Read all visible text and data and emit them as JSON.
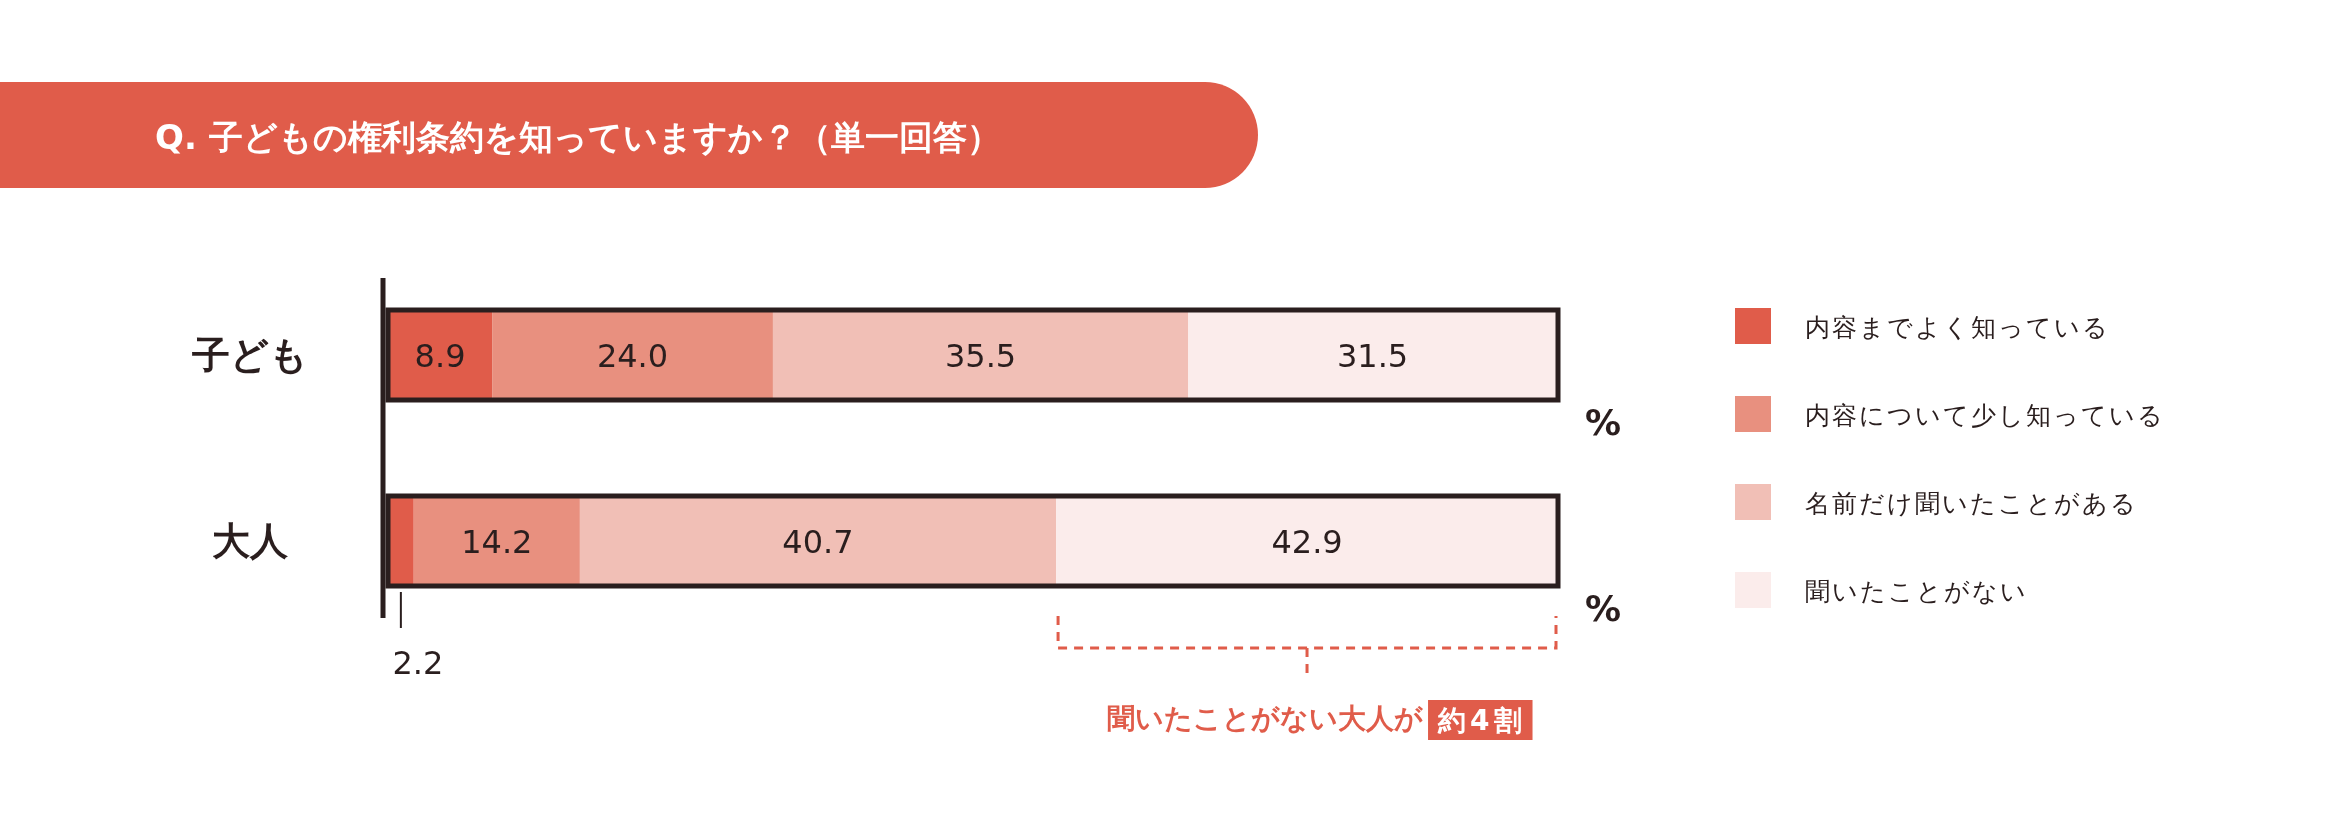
{
  "chart_data": {
    "type": "bar",
    "orientation": "horizontal",
    "stacked": true,
    "title": "Q. 子どもの権利条約を知っていますか？（単一回答）",
    "categories": [
      "子ども",
      "大人"
    ],
    "series": [
      {
        "name": "内容までよく知っている",
        "color": "#e05c4a",
        "values": [
          8.9,
          2.2
        ],
        "value_labels": [
          "8.9",
          "2.2"
        ]
      },
      {
        "name": "内容について少し知っている",
        "color": "#e8907f",
        "values": [
          24.0,
          14.2
        ],
        "value_labels": [
          "24.0",
          "14.2"
        ]
      },
      {
        "name": "名前だけ聞いたことがある",
        "color": "#f1bfb6",
        "values": [
          35.5,
          40.7
        ],
        "value_labels": [
          "35.5",
          "40.7"
        ]
      },
      {
        "name": "聞いたことがない",
        "color": "#fbeceb",
        "values": [
          31.5,
          42.9
        ],
        "value_labels": [
          "31.5",
          "42.9"
        ]
      }
    ],
    "tick_labels": "y",
    "legend": "right",
    "annotations": [
      "%",
      "%",
      "聞いたことがない大人が約4割"
    ]
  }
}
